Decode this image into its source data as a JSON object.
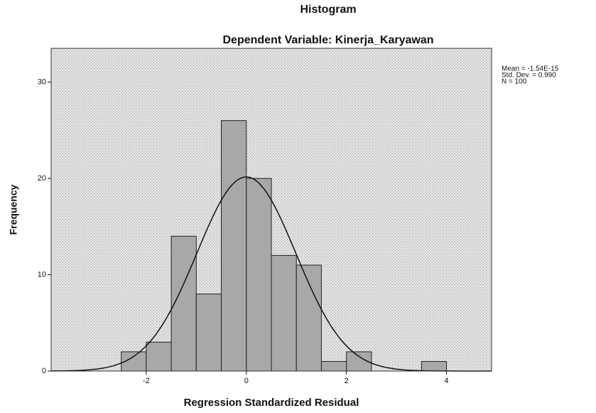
{
  "chart_data": {
    "type": "histogram",
    "title": "Histogram",
    "subtitle": "Dependent Variable: Kinerja_Karyawan",
    "x_label": "Regression Standardized Residual",
    "y_label": "Frequency",
    "bins": [
      -2.5,
      -2.0,
      -1.5,
      -1.0,
      -0.5,
      0,
      0.5,
      1.0,
      1.5,
      2.0,
      2.5,
      3.0,
      3.5,
      4.0
    ],
    "values": [
      2,
      3,
      14,
      8,
      26,
      20,
      12,
      11,
      1,
      2,
      0,
      0,
      1
    ],
    "color": "#a8a8a8",
    "xlim": [
      -3.9,
      4.9
    ],
    "xticks": [
      -2,
      0,
      2,
      4
    ],
    "ylim": [
      0,
      33.5
    ],
    "yticks": [
      0,
      10,
      20,
      30
    ],
    "stats": [
      {
        "value": -1.54e-15,
        "label": "Mean = -1.54E-15"
      },
      {
        "value": 0.99,
        "label": "Std. Dev. = 0.990"
      },
      {
        "value": 100,
        "label": "N = 100"
      }
    ]
  }
}
